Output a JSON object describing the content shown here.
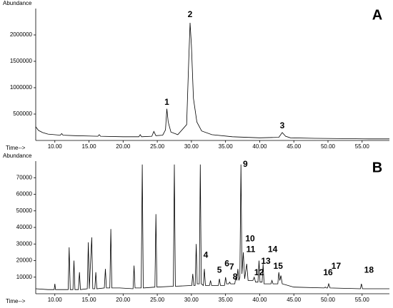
{
  "chart_data": [
    {
      "type": "line",
      "title": "A",
      "y_label": "Abundance",
      "x_label": "Time-->",
      "color": "#000000",
      "xlim": [
        7.2,
        59
      ],
      "xticks": [
        {
          "value": 10,
          "label": "10.00"
        },
        {
          "value": 15,
          "label": "15.00"
        },
        {
          "value": 20,
          "label": "20.00"
        },
        {
          "value": 25,
          "label": "25.00"
        },
        {
          "value": 30,
          "label": "30.00"
        },
        {
          "value": 35,
          "label": "35.00"
        },
        {
          "value": 40,
          "label": "40.00"
        },
        {
          "value": 45,
          "label": "45.00"
        },
        {
          "value": 50,
          "label": "50.00"
        },
        {
          "value": 55,
          "label": "55.00"
        }
      ],
      "ylim": [
        0,
        2500000
      ],
      "yticks": [
        500000,
        1000000,
        1500000,
        2000000
      ],
      "x": [
        7.2,
        7.6,
        8.2,
        9,
        10.8,
        11,
        11.2,
        13,
        16.3,
        16.5,
        16.7,
        20,
        22.3,
        22.5,
        22.7,
        24.2,
        24.5,
        24.8,
        25.8,
        26.2,
        26.4,
        26.6,
        27,
        28,
        29.3,
        29.6,
        29.8,
        30,
        30.3,
        30.8,
        31.5,
        33,
        36,
        40,
        42.8,
        43.3,
        43.8,
        44.5,
        48,
        52,
        56,
        59
      ],
      "values": [
        260000,
        190000,
        150000,
        120000,
        100000,
        130000,
        100000,
        90000,
        80000,
        110000,
        80000,
        70000,
        70000,
        110000,
        70000,
        80000,
        170000,
        90000,
        100000,
        200000,
        600000,
        350000,
        160000,
        110000,
        300000,
        1500000,
        2230000,
        1800000,
        800000,
        350000,
        180000,
        110000,
        70000,
        50000,
        60000,
        150000,
        80000,
        50000,
        40000,
        35000,
        30000,
        30000
      ],
      "annotations": [
        {
          "text": "1",
          "x": 26.4,
          "y": 720000
        },
        {
          "text": "2",
          "x": 29.8,
          "y": 2380000
        },
        {
          "text": "3",
          "x": 43.3,
          "y": 270000
        }
      ]
    },
    {
      "type": "line",
      "title": "B",
      "y_label": "Abundance",
      "x_label": "Time-->",
      "color": "#000000",
      "xlim": [
        7.2,
        59
      ],
      "xticks": [
        {
          "value": 10,
          "label": "10.00"
        },
        {
          "value": 15,
          "label": "15.00"
        },
        {
          "value": 20,
          "label": "20.00"
        },
        {
          "value": 25,
          "label": "25.00"
        },
        {
          "value": 30,
          "label": "30.00"
        },
        {
          "value": 35,
          "label": "35.00"
        },
        {
          "value": 40,
          "label": "40.00"
        },
        {
          "value": 45,
          "label": "45.00"
        },
        {
          "value": 50,
          "label": "50.00"
        },
        {
          "value": 55,
          "label": "55.00"
        }
      ],
      "ylim": [
        0,
        80000
      ],
      "yticks": [
        10000,
        20000,
        30000,
        40000,
        50000,
        60000,
        70000
      ],
      "x": [
        7.2,
        9,
        9.9,
        10,
        10.1,
        11.95,
        12.1,
        12.25,
        12.65,
        12.8,
        12.95,
        13.45,
        13.6,
        13.75,
        14.75,
        14.9,
        15.05,
        15.4,
        15.55,
        15.85,
        16,
        16.15,
        17.25,
        17.4,
        17.55,
        18.05,
        18.2,
        18.35,
        19.5,
        21.45,
        21.6,
        21.75,
        22.65,
        22.8,
        22.95,
        24.65,
        24.8,
        24.95,
        27.35,
        27.5,
        27.65,
        30.05,
        30.2,
        30.35,
        30.55,
        30.7,
        30.85,
        31.15,
        31.3,
        31.45,
        31.75,
        31.9,
        32.05,
        32.65,
        32.8,
        32.95,
        33.95,
        34.1,
        34.25,
        34.85,
        35,
        35.15,
        35.45,
        35.6,
        35.75,
        36.35,
        36.5,
        36.65,
        36.8,
        36.95,
        37.1,
        37.25,
        37.4,
        37.6,
        37.8,
        38.1,
        38.3,
        39,
        39.2,
        39.4,
        39.75,
        39.9,
        40.05,
        40.35,
        40.5,
        40.65,
        41.65,
        41.8,
        41.95,
        42.65,
        42.8,
        42.95,
        43.1,
        43.3,
        45,
        49.45,
        49.6,
        49.75,
        49.95,
        50.1,
        50.3,
        54.75,
        54.9,
        55.05,
        59
      ],
      "values": [
        3000,
        2500,
        2500,
        6000,
        2500,
        2500,
        28000,
        2500,
        2500,
        20000,
        2500,
        2500,
        13000,
        2500,
        3000,
        31000,
        3000,
        34000,
        3000,
        3000,
        13000,
        3000,
        3500,
        15000,
        3500,
        3500,
        39000,
        3500,
        3500,
        3000,
        17000,
        3500,
        3500,
        78000,
        3500,
        4000,
        48000,
        4000,
        4500,
        78000,
        4500,
        5000,
        12000,
        5000,
        5000,
        30000,
        6000,
        6000,
        78000,
        6000,
        5000,
        15000,
        5000,
        5000,
        8000,
        5000,
        5000,
        9000,
        5000,
        5000,
        10000,
        6000,
        6000,
        7000,
        6000,
        6000,
        10000,
        8000,
        15000,
        8000,
        10000,
        78000,
        12000,
        25000,
        9000,
        18000,
        8000,
        8000,
        10000,
        7000,
        7000,
        20000,
        7000,
        7000,
        18000,
        6000,
        6000,
        8000,
        6000,
        6000,
        13000,
        8000,
        11000,
        6000,
        4000,
        3500,
        4000,
        3500,
        3500,
        6000,
        3500,
        3000,
        6000,
        3000,
        3000
      ],
      "annotations": [
        {
          "text": "4",
          "x": 32.1,
          "y": 23000
        },
        {
          "text": "5",
          "x": 34.1,
          "y": 14000
        },
        {
          "text": "6",
          "x": 35.2,
          "y": 18000
        },
        {
          "text": "7",
          "x": 35.9,
          "y": 16000
        },
        {
          "text": "8",
          "x": 36.4,
          "y": 10000
        },
        {
          "text": "9",
          "x": 37.9,
          "y": 78000
        },
        {
          "text": "10",
          "x": 38.6,
          "y": 33000
        },
        {
          "text": "11",
          "x": 38.7,
          "y": 26500
        },
        {
          "text": "12",
          "x": 39.9,
          "y": 12500
        },
        {
          "text": "13",
          "x": 40.9,
          "y": 19500
        },
        {
          "text": "14",
          "x": 41.9,
          "y": 26500
        },
        {
          "text": "15",
          "x": 42.7,
          "y": 16500
        },
        {
          "text": "16",
          "x": 50.0,
          "y": 12500
        },
        {
          "text": "17",
          "x": 51.2,
          "y": 16500
        },
        {
          "text": "18",
          "x": 56.0,
          "y": 14000
        }
      ]
    }
  ]
}
